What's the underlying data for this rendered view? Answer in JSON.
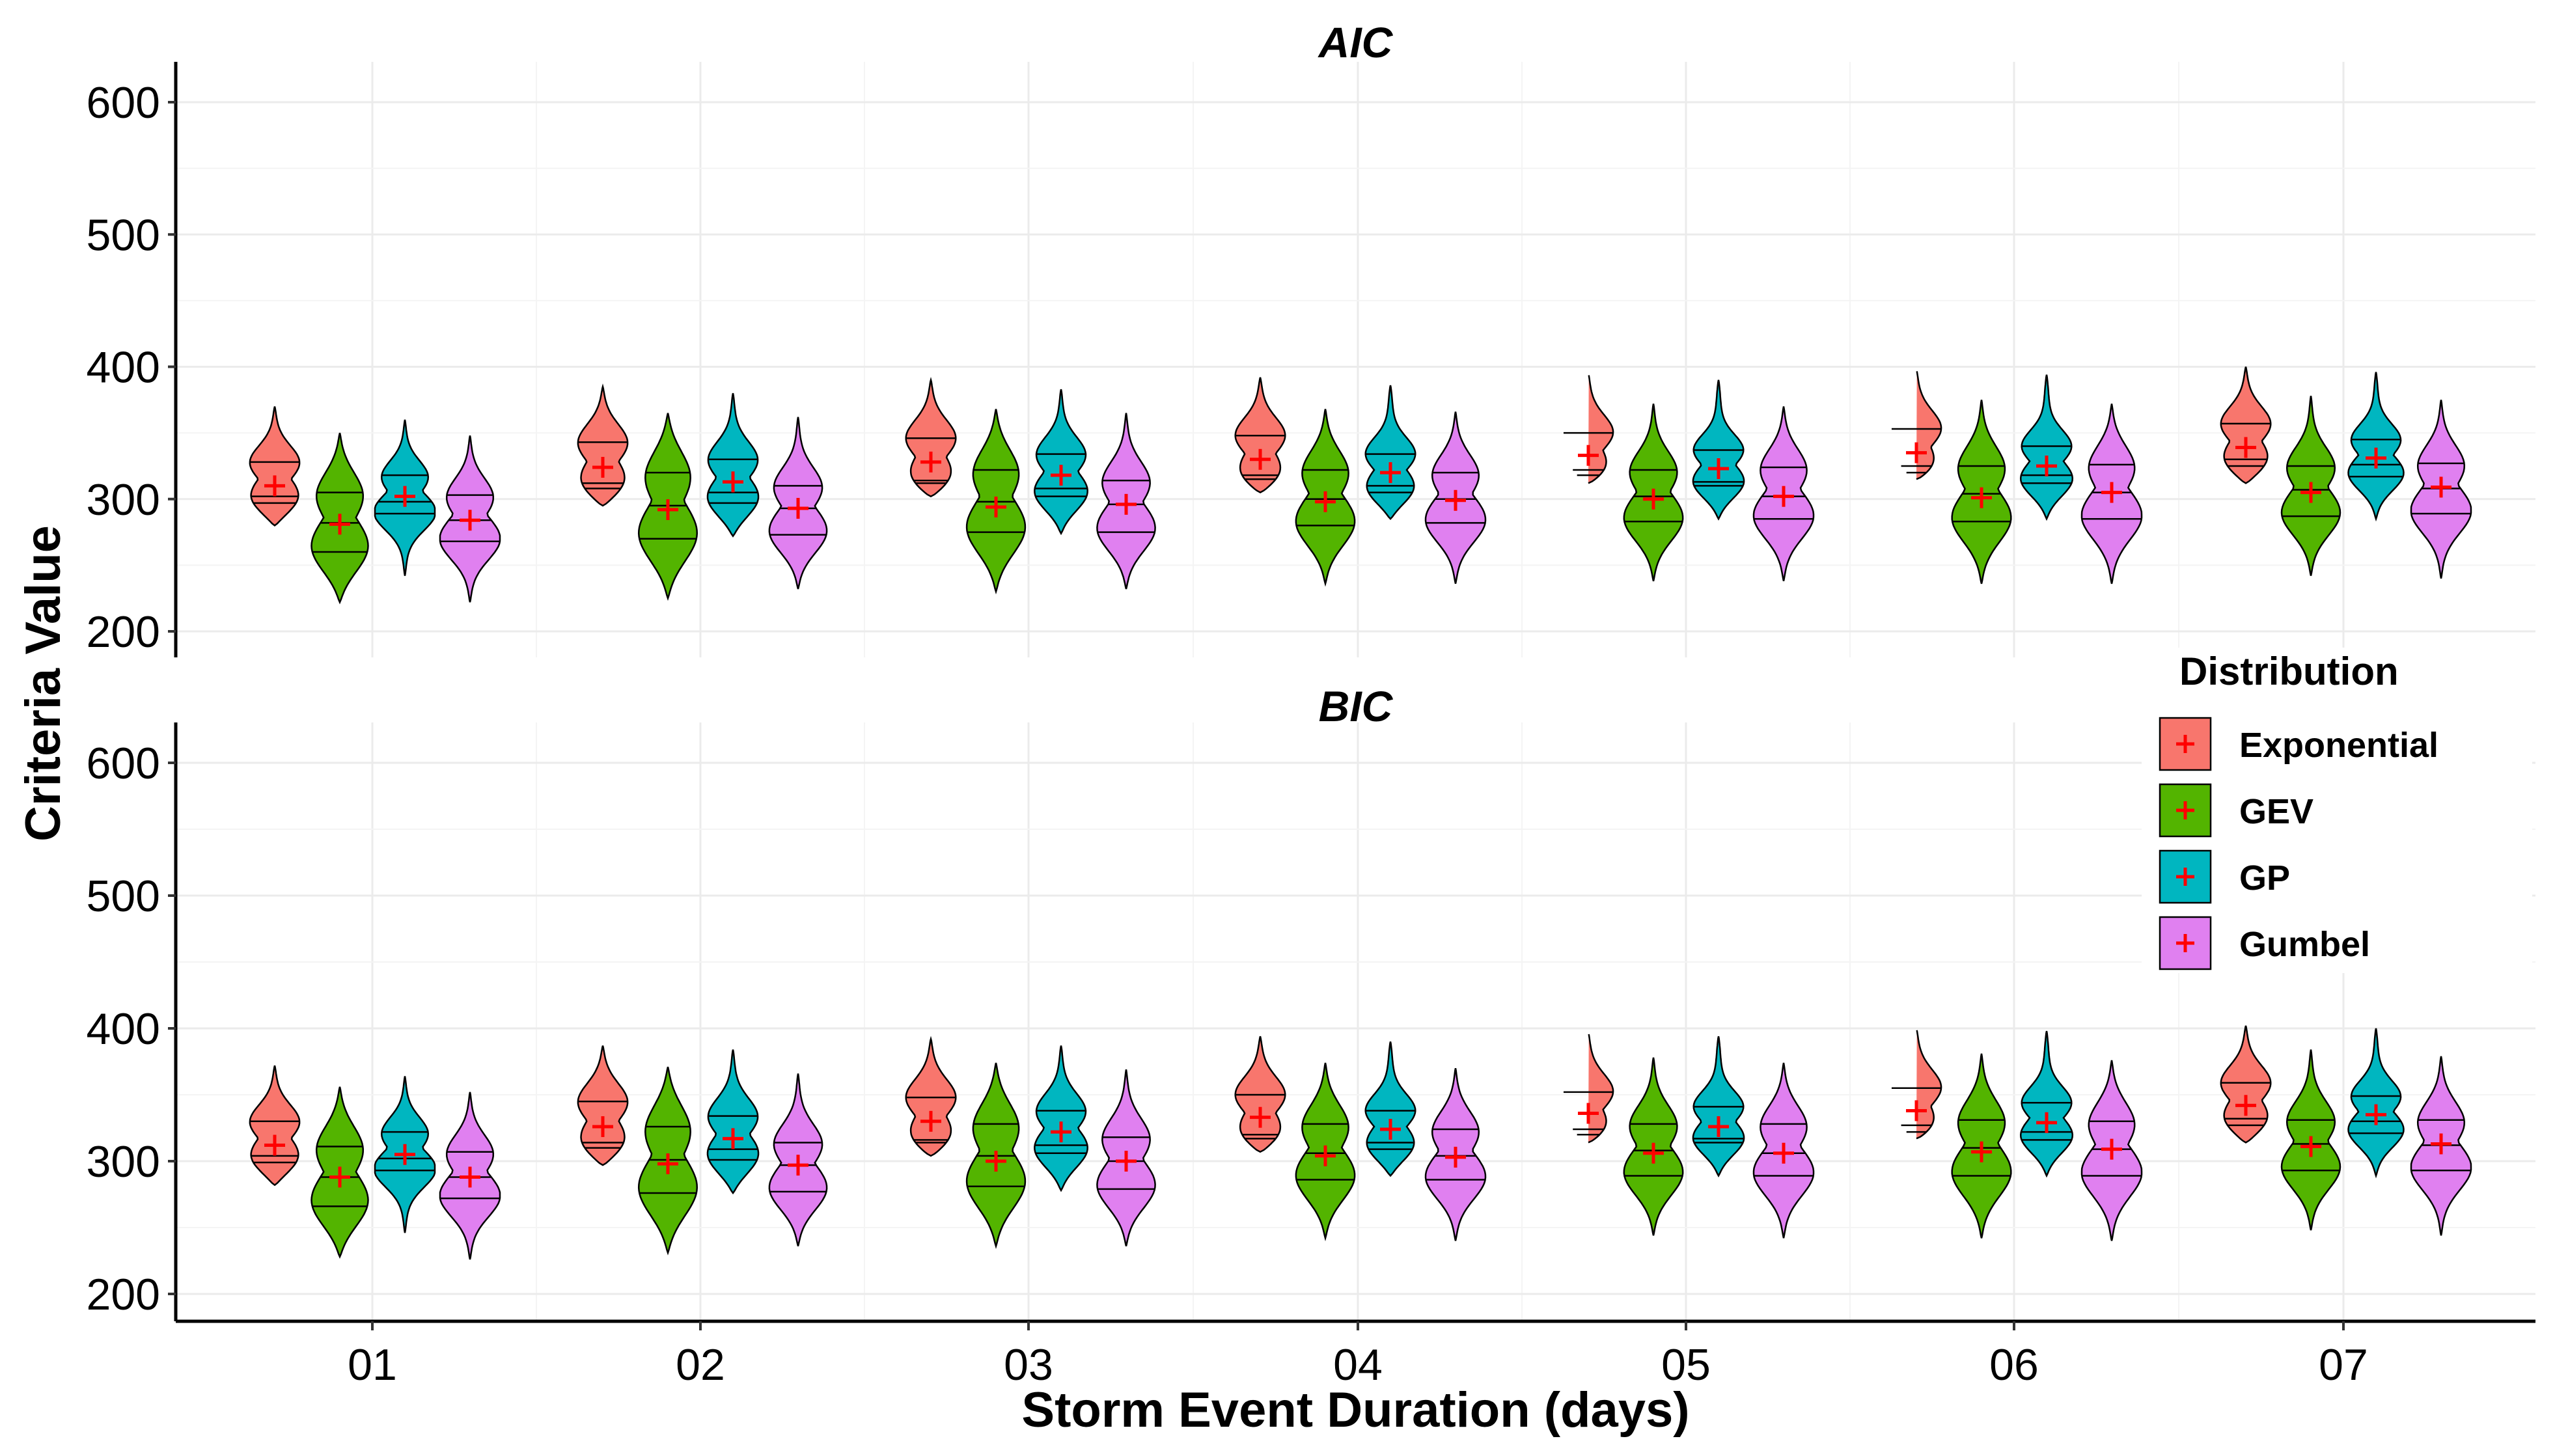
{
  "chart_data": {
    "type": "violin",
    "ylabel": "Criteria Value",
    "xlabel": "Storm Event Duration (days)",
    "categories": [
      "01",
      "02",
      "03",
      "04",
      "05",
      "06",
      "07"
    ],
    "y_ticks": [
      "200",
      "300",
      "400",
      "500",
      "600"
    ],
    "ylim": [
      180,
      620
    ],
    "grid": true,
    "legend": {
      "title": "Distribution",
      "position": "right",
      "entries": [
        "Exponential",
        "GEV",
        "GP",
        "Gumbel"
      ]
    },
    "colors": {
      "Exponential": "#F8766D",
      "GEV": "#53B400",
      "GP": "#00B6C0",
      "Gumbel": "#E080F0",
      "mean_marker": "#FF0000"
    },
    "panels": [
      {
        "title": "AIC",
        "series": [
          {
            "name": "Exponential",
            "mean": [
              310,
              324,
              328,
              330,
              333,
              335,
              339
            ],
            "min": [
              280,
              295,
              302,
              305,
              312,
              315,
              312
            ],
            "max": [
              370,
              385,
              390,
              392,
              395,
              398,
              400
            ],
            "q1": [
              297,
              308,
              312,
              315,
              318,
              320,
              325
            ],
            "median": [
              302,
              312,
              314,
              318,
              322,
              325,
              330
            ],
            "q3": [
              328,
              343,
              346,
              348,
              350,
              353,
              357
            ]
          },
          {
            "name": "GEV",
            "mean": [
              281,
              292,
              294,
              298,
              300,
              301,
              305
            ],
            "min": [
              222,
              225,
              230,
              236,
              238,
              236,
              242
            ],
            "max": [
              350,
              365,
              368,
              368,
              372,
              375,
              378
            ],
            "q1": [
              260,
              270,
              275,
              280,
              283,
              283,
              287
            ],
            "median": [
              282,
              295,
              298,
              300,
              302,
              304,
              307
            ],
            "q3": [
              305,
              320,
              322,
              322,
              322,
              325,
              325
            ]
          },
          {
            "name": "GP",
            "mean": [
              302,
              313,
              318,
              320,
              323,
              325,
              331
            ],
            "min": [
              242,
              272,
              274,
              285,
              285,
              285,
              285
            ],
            "max": [
              360,
              380,
              383,
              386,
              390,
              394,
              396
            ],
            "q1": [
              289,
              297,
              302,
              305,
              310,
              312,
              317
            ],
            "median": [
              298,
              305,
              308,
              310,
              313,
              318,
              326
            ],
            "q3": [
              318,
              330,
              334,
              334,
              337,
              340,
              345
            ]
          },
          {
            "name": "Gumbel",
            "mean": [
              284,
              293,
              296,
              299,
              302,
              305,
              309
            ],
            "min": [
              222,
              232,
              232,
              236,
              238,
              236,
              240
            ],
            "max": [
              348,
              362,
              365,
              366,
              370,
              372,
              375
            ],
            "q1": [
              268,
              273,
              275,
              282,
              285,
              285,
              289
            ],
            "median": [
              284,
              293,
              296,
              300,
              302,
              305,
              308
            ],
            "q3": [
              303,
              310,
              314,
              320,
              324,
              326,
              327
            ]
          }
        ]
      },
      {
        "title": "BIC",
        "series": [
          {
            "name": "Exponential",
            "mean": [
              312,
              326,
              330,
              333,
              336,
              338,
              342
            ],
            "min": [
              282,
              297,
              304,
              307,
              314,
              317,
              314
            ],
            "max": [
              372,
              387,
              392,
              394,
              397,
              400,
              402
            ],
            "q1": [
              299,
              310,
              314,
              317,
              320,
              322,
              327
            ],
            "median": [
              304,
              314,
              316,
              320,
              324,
              327,
              332
            ],
            "q3": [
              330,
              345,
              348,
              350,
              352,
              355,
              359
            ]
          },
          {
            "name": "GEV",
            "mean": [
              288,
              298,
              300,
              304,
              306,
              307,
              311
            ],
            "min": [
              228,
              231,
              236,
              242,
              244,
              242,
              248
            ],
            "max": [
              356,
              371,
              374,
              374,
              378,
              381,
              384
            ],
            "q1": [
              266,
              276,
              281,
              286,
              289,
              289,
              293
            ],
            "median": [
              288,
              301,
              304,
              306,
              308,
              310,
              313
            ],
            "q3": [
              311,
              326,
              328,
              328,
              328,
              331,
              331
            ]
          },
          {
            "name": "GP",
            "mean": [
              305,
              317,
              322,
              324,
              326,
              329,
              335
            ],
            "min": [
              246,
              276,
              278,
              289,
              289,
              289,
              289
            ],
            "max": [
              364,
              384,
              387,
              390,
              394,
              398,
              400
            ],
            "q1": [
              293,
              301,
              306,
              309,
              314,
              316,
              321
            ],
            "median": [
              302,
              309,
              312,
              314,
              317,
              322,
              330
            ],
            "q3": [
              322,
              334,
              338,
              338,
              341,
              344,
              349
            ]
          },
          {
            "name": "Gumbel",
            "mean": [
              288,
              297,
              300,
              303,
              306,
              309,
              313
            ],
            "min": [
              226,
              236,
              236,
              240,
              242,
              240,
              244
            ],
            "max": [
              352,
              366,
              369,
              370,
              374,
              376,
              379
            ],
            "q1": [
              272,
              277,
              279,
              286,
              289,
              289,
              293
            ],
            "median": [
              288,
              297,
              300,
              304,
              306,
              309,
              312
            ],
            "q3": [
              307,
              314,
              318,
              324,
              328,
              330,
              331
            ]
          }
        ]
      }
    ]
  }
}
